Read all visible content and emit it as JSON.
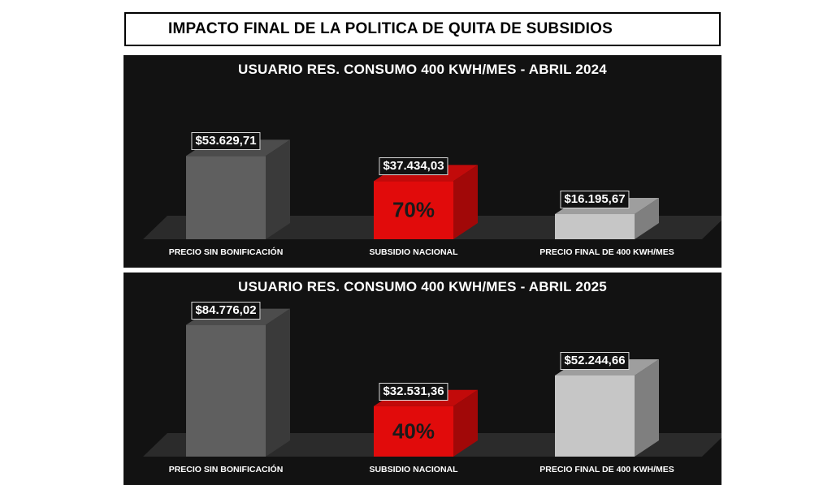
{
  "title": "IMPACTO FINAL DE LA POLITICA DE QUITA DE SUBSIDIOS",
  "colors": {
    "bar_sin": "#5f5f5f",
    "bar_subsidio": "#e10b0b",
    "bar_final": "#c6c6c6",
    "panel_bg": "#121212"
  },
  "chart_data": [
    {
      "type": "bar",
      "title": "USUARIO RES. CONSUMO 400 KWH/MES - ABRIL 2024",
      "categories": [
        "PRECIO SIN BONIFICACIÓN",
        "SUBSIDIO NACIONAL",
        "PRECIO FINAL DE 400 KWH/MES"
      ],
      "values": [
        53629.71,
        37434.03,
        16195.67
      ],
      "value_labels": [
        "$53.629,71",
        "$37.434,03",
        "$16.195,67"
      ],
      "subsidy_percent_label": "70%",
      "style": "3d-columns"
    },
    {
      "type": "bar",
      "title": "USUARIO RES. CONSUMO 400 KWH/MES - ABRIL 2025",
      "categories": [
        "PRECIO SIN BONIFICACIÓN",
        "SUBSIDIO NACIONAL",
        "PRECIO FINAL DE 400 KWH/MES"
      ],
      "values": [
        84776.02,
        32531.36,
        52244.66
      ],
      "value_labels": [
        "$84.776,02",
        "$32.531,36",
        "$52.244,66"
      ],
      "subsidy_percent_label": "40%",
      "style": "3d-columns"
    }
  ]
}
